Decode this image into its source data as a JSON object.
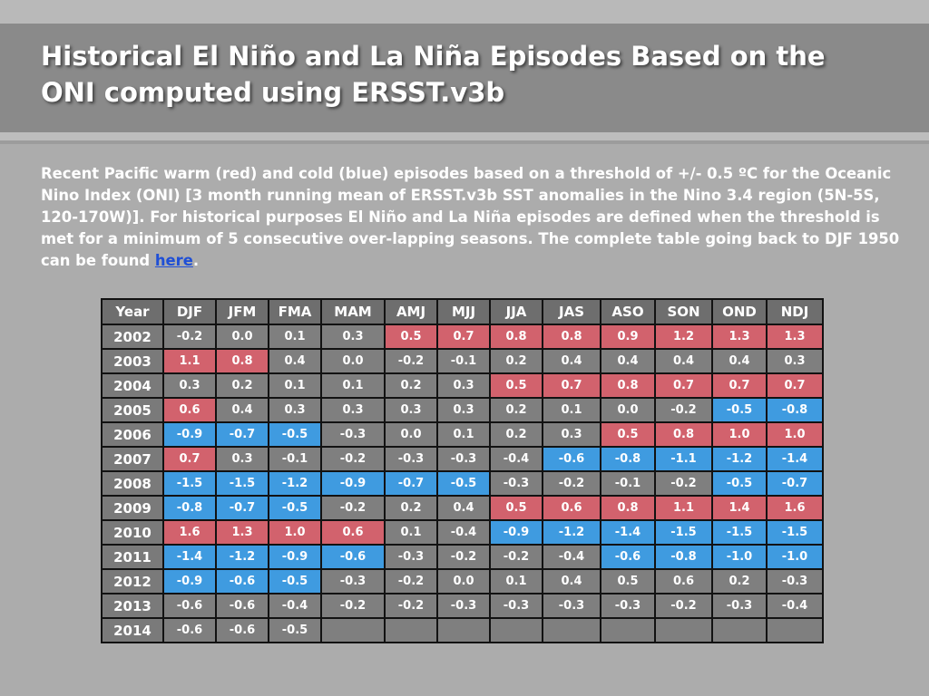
{
  "slide": {
    "title_line1": "Historical El Niño and La Niña Episodes Based on the",
    "title_line2": "ONI computed using ERSST.v3b",
    "intro_text": "Recent Pacific warm (red) and cold (blue) episodes based on a threshold of +/- 0.5 ºC for the Oceanic Nino Index (ONI) [3 month running mean of ERSST.v3b SST anomalies in the Nino 3.4 region (5N-5S, 120-170W)]. For historical purposes El Niño and La Niña episodes are defined when the threshold is met for a minimum of 5 consecutive over-lapping seasons. The complete table going back to DJF 1950 can be found ",
    "intro_link": "here",
    "intro_end": "."
  },
  "colors": {
    "warm": "#d2626d",
    "cold": "#3f9be0",
    "neutral": "#7f7f7f",
    "header": "#6e6e6e",
    "title_band": "#8a8a8a",
    "background": "#acacac"
  },
  "table": {
    "headers": [
      "Year",
      "DJF",
      "JFM",
      "FMA",
      "MAM",
      "AMJ",
      "MJJ",
      "JJA",
      "JAS",
      "ASO",
      "SON",
      "OND",
      "NDJ"
    ],
    "rows": [
      {
        "year": "2002",
        "values": [
          "-0.2",
          "0.0",
          "0.1",
          "0.3",
          "0.5",
          "0.7",
          "0.8",
          "0.8",
          "0.9",
          "1.2",
          "1.3",
          "1.3"
        ],
        "episodes": [
          "n",
          "n",
          "n",
          "n",
          "w",
          "w",
          "w",
          "w",
          "w",
          "w",
          "w",
          "w"
        ]
      },
      {
        "year": "2003",
        "values": [
          "1.1",
          "0.8",
          "0.4",
          "0.0",
          "-0.2",
          "-0.1",
          "0.2",
          "0.4",
          "0.4",
          "0.4",
          "0.4",
          "0.3"
        ],
        "episodes": [
          "w",
          "w",
          "n",
          "n",
          "n",
          "n",
          "n",
          "n",
          "n",
          "n",
          "n",
          "n"
        ]
      },
      {
        "year": "2004",
        "values": [
          "0.3",
          "0.2",
          "0.1",
          "0.1",
          "0.2",
          "0.3",
          "0.5",
          "0.7",
          "0.8",
          "0.7",
          "0.7",
          "0.7"
        ],
        "episodes": [
          "n",
          "n",
          "n",
          "n",
          "n",
          "n",
          "w",
          "w",
          "w",
          "w",
          "w",
          "w"
        ]
      },
      {
        "year": "2005",
        "values": [
          "0.6",
          "0.4",
          "0.3",
          "0.3",
          "0.3",
          "0.3",
          "0.2",
          "0.1",
          "0.0",
          "-0.2",
          "-0.5",
          "-0.8"
        ],
        "episodes": [
          "w",
          "n",
          "n",
          "n",
          "n",
          "n",
          "n",
          "n",
          "n",
          "n",
          "c",
          "c"
        ]
      },
      {
        "year": "2006",
        "values": [
          "-0.9",
          "-0.7",
          "-0.5",
          "-0.3",
          "0.0",
          "0.1",
          "0.2",
          "0.3",
          "0.5",
          "0.8",
          "1.0",
          "1.0"
        ],
        "episodes": [
          "c",
          "c",
          "c",
          "n",
          "n",
          "n",
          "n",
          "n",
          "w",
          "w",
          "w",
          "w"
        ]
      },
      {
        "year": "2007",
        "values": [
          "0.7",
          "0.3",
          "-0.1",
          "-0.2",
          "-0.3",
          "-0.3",
          "-0.4",
          "-0.6",
          "-0.8",
          "-1.1",
          "-1.2",
          "-1.4"
        ],
        "episodes": [
          "w",
          "n",
          "n",
          "n",
          "n",
          "n",
          "n",
          "c",
          "c",
          "c",
          "c",
          "c"
        ]
      },
      {
        "year": "2008",
        "values": [
          "-1.5",
          "-1.5",
          "-1.2",
          "-0.9",
          "-0.7",
          "-0.5",
          "-0.3",
          "-0.2",
          "-0.1",
          "-0.2",
          "-0.5",
          "-0.7"
        ],
        "episodes": [
          "c",
          "c",
          "c",
          "c",
          "c",
          "c",
          "n",
          "n",
          "n",
          "n",
          "c",
          "c"
        ]
      },
      {
        "year": "2009",
        "values": [
          "-0.8",
          "-0.7",
          "-0.5",
          "-0.2",
          "0.2",
          "0.4",
          "0.5",
          "0.6",
          "0.8",
          "1.1",
          "1.4",
          "1.6"
        ],
        "episodes": [
          "c",
          "c",
          "c",
          "n",
          "n",
          "n",
          "w",
          "w",
          "w",
          "w",
          "w",
          "w"
        ]
      },
      {
        "year": "2010",
        "values": [
          "1.6",
          "1.3",
          "1.0",
          "0.6",
          "0.1",
          "-0.4",
          "-0.9",
          "-1.2",
          "-1.4",
          "-1.5",
          "-1.5",
          "-1.5"
        ],
        "episodes": [
          "w",
          "w",
          "w",
          "w",
          "n",
          "n",
          "c",
          "c",
          "c",
          "c",
          "c",
          "c"
        ]
      },
      {
        "year": "2011",
        "values": [
          "-1.4",
          "-1.2",
          "-0.9",
          "-0.6",
          "-0.3",
          "-0.2",
          "-0.2",
          "-0.4",
          "-0.6",
          "-0.8",
          "-1.0",
          "-1.0"
        ],
        "episodes": [
          "c",
          "c",
          "c",
          "c",
          "n",
          "n",
          "n",
          "n",
          "c",
          "c",
          "c",
          "c"
        ]
      },
      {
        "year": "2012",
        "values": [
          "-0.9",
          "-0.6",
          "-0.5",
          "-0.3",
          "-0.2",
          "0.0",
          "0.1",
          "0.4",
          "0.5",
          "0.6",
          "0.2",
          "-0.3"
        ],
        "episodes": [
          "c",
          "c",
          "c",
          "n",
          "n",
          "n",
          "n",
          "n",
          "n",
          "n",
          "n",
          "n"
        ]
      },
      {
        "year": "2013",
        "values": [
          "-0.6",
          "-0.6",
          "-0.4",
          "-0.2",
          "-0.2",
          "-0.3",
          "-0.3",
          "-0.3",
          "-0.3",
          "-0.2",
          "-0.3",
          "-0.4"
        ],
        "episodes": [
          "n",
          "n",
          "n",
          "n",
          "n",
          "n",
          "n",
          "n",
          "n",
          "n",
          "n",
          "n"
        ]
      },
      {
        "year": "2014",
        "values": [
          "-0.6",
          "-0.6",
          "-0.5",
          "",
          "",
          "",
          "",
          "",
          "",
          "",
          "",
          ""
        ],
        "episodes": [
          "n",
          "n",
          "n",
          "e",
          "e",
          "e",
          "e",
          "e",
          "e",
          "e",
          "e",
          "e"
        ]
      }
    ]
  }
}
